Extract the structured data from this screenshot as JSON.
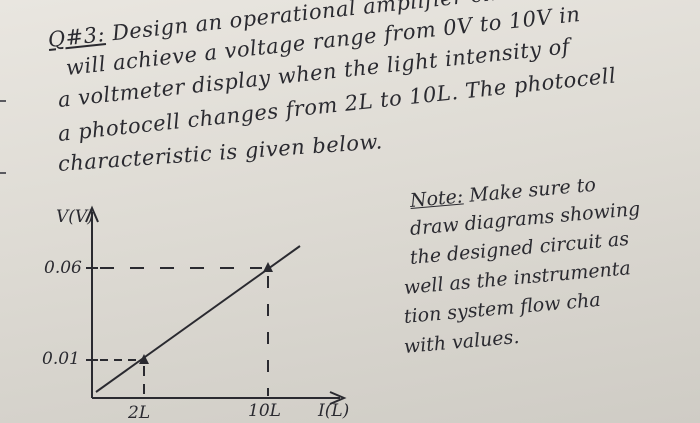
{
  "question": {
    "number": "Q#3:",
    "lines": [
      "Design an operational amplifier circuit that",
      "will achieve a voltage range from 0V to 10V in",
      "a voltmeter display when the light intensity of",
      "a photocell changes from 2L to 10L. The photocell",
      "characteristic is given below."
    ]
  },
  "note": {
    "heading": "Note:",
    "lines_first": "Make sure to",
    "lines": [
      "draw diagrams showing",
      "the designed circuit as",
      "well as the instrumenta",
      "tion system flow cha",
      "with values."
    ]
  },
  "chart_data": {
    "type": "line",
    "xlabel": "I(L)",
    "ylabel": "V(V)",
    "x_ticks": [
      "2L",
      "10L"
    ],
    "y_ticks": [
      "0.01",
      "0.06"
    ],
    "points": [
      {
        "x": 2,
        "y": 0.01
      },
      {
        "x": 10,
        "y": 0.06
      }
    ]
  }
}
